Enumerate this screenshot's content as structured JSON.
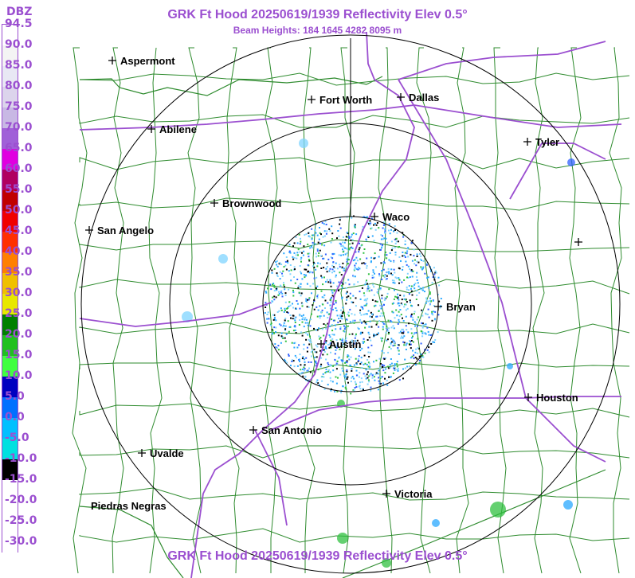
{
  "radar": {
    "title": "GRK Ft Hood 20250619/1939 Reflectivity Elev 0.5°",
    "subtitle": "Beam Heights: 184 1645 4282 8095 m",
    "title_bottom": "GRK Ft Hood 20250619/1939 Reflectivity Elev 0.5°"
  },
  "legend": {
    "unit": "DBZ",
    "labels": [
      "94.5",
      "90.0",
      "85.0",
      "80.0",
      "75.0",
      "70.0",
      "65.0",
      "60.0",
      "55.0",
      "50.0",
      "45.0",
      "40.0",
      "35.0",
      "30.0",
      "25.0",
      "20.0",
      "15.0",
      "10.0",
      "5.0",
      "0.0",
      "-5.0",
      "-10.0",
      "-15.0",
      "-20.0",
      "-25.0",
      "-30.0"
    ],
    "colors": [
      "#ffffff",
      "#f4f4f4",
      "#e8e8f4",
      "#dcd4ec",
      "#c8b8e4",
      "#a060d8",
      "#e000e0",
      "#b00060",
      "#c00000",
      "#f00000",
      "#ff3000",
      "#ff8000",
      "#f0c000",
      "#e8e800",
      "#008000",
      "#20c020",
      "#40ff40",
      "#0000c0",
      "#0070ff",
      "#00c0ff",
      "#00e0e0",
      "#000000",
      "#ffffff",
      "#ffffff",
      "#ffffff",
      "#ffffff"
    ]
  },
  "map": {
    "cities": [
      {
        "name": "Aspermont"
      },
      {
        "name": "Fort Worth"
      },
      {
        "name": "Dallas"
      },
      {
        "name": "Abilene"
      },
      {
        "name": "Tyler"
      },
      {
        "name": "Brownwood"
      },
      {
        "name": "Waco"
      },
      {
        "name": "San Angelo"
      },
      {
        "name": "Bryan"
      },
      {
        "name": "Austin"
      },
      {
        "name": "Houston"
      },
      {
        "name": "San Antonio"
      },
      {
        "name": "Uvalde"
      },
      {
        "name": "Victoria"
      },
      {
        "name": "Piedras Negras"
      },
      {
        "name": ""
      }
    ],
    "colors": {
      "county_lines": "#2e8b2e",
      "highways": "#9b4fd0",
      "range_rings": "#000000",
      "echo_light": "#7fd4ff",
      "echo_mid": "#2aa8ff",
      "echo_dark": "#3060ff",
      "echo_green": "#30c040"
    }
  }
}
